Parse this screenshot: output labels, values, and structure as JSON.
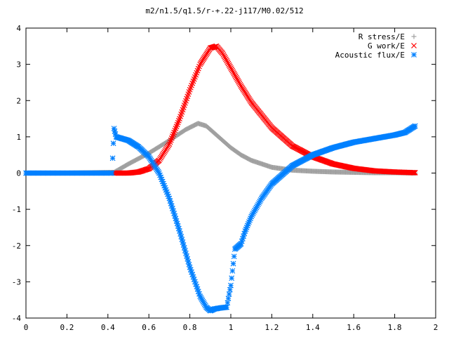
{
  "chart_data": {
    "type": "scatter",
    "title": "m2/n1.5/q1.5/r-+.22-j117/M0.02/512",
    "xlabel": "",
    "ylabel": "",
    "xlim": [
      0,
      2
    ],
    "ylim": [
      -4,
      4
    ],
    "xticks": [
      "0",
      "0.2",
      "0.4",
      "0.6",
      "0.8",
      "1",
      "1.2",
      "1.4",
      "1.6",
      "1.8",
      "2"
    ],
    "yticks": [
      "4",
      "3",
      "2",
      "1",
      "0",
      "-1",
      "-2",
      "-3",
      "-4"
    ],
    "grid": false,
    "legend_position": "top-right",
    "series": [
      {
        "name": "R stress/E",
        "marker": "plus",
        "color": "#a0a0a0",
        "x": [
          0.0,
          0.2,
          0.43,
          0.5,
          0.6,
          0.7,
          0.78,
          0.84,
          0.88,
          0.95,
          1.0,
          1.05,
          1.1,
          1.2,
          1.3,
          1.4,
          1.5,
          1.6,
          1.7,
          1.8,
          1.9
        ],
        "y": [
          0,
          0,
          0.02,
          0.25,
          0.55,
          0.9,
          1.2,
          1.37,
          1.3,
          0.95,
          0.7,
          0.5,
          0.35,
          0.16,
          0.08,
          0.05,
          0.03,
          0.02,
          0.01,
          0.01,
          0.0
        ]
      },
      {
        "name": "G work/E",
        "marker": "cross",
        "color": "#ff0000",
        "x": [
          0.43,
          0.5,
          0.55,
          0.6,
          0.65,
          0.7,
          0.75,
          0.8,
          0.85,
          0.9,
          0.93,
          0.96,
          1.0,
          1.05,
          1.1,
          1.2,
          1.3,
          1.4,
          1.5,
          1.6,
          1.7,
          1.8,
          1.9
        ],
        "y": [
          0.0,
          0.0,
          0.03,
          0.12,
          0.35,
          0.8,
          1.5,
          2.3,
          3.0,
          3.45,
          3.5,
          3.3,
          2.9,
          2.4,
          1.95,
          1.25,
          0.75,
          0.45,
          0.25,
          0.13,
          0.06,
          0.03,
          0.01
        ]
      },
      {
        "name": "Acoustic flux/E",
        "marker": "star",
        "color": "#0080ff",
        "x": [
          0.0,
          0.2,
          0.42,
          0.43,
          0.44,
          0.5,
          0.55,
          0.6,
          0.65,
          0.7,
          0.75,
          0.8,
          0.85,
          0.88,
          0.9,
          0.92,
          0.95,
          0.98,
          1.0,
          1.02,
          1.05,
          1.07,
          1.1,
          1.15,
          1.2,
          1.3,
          1.4,
          1.5,
          1.6,
          1.7,
          1.8,
          1.85,
          1.9
        ],
        "y": [
          0.0,
          0.0,
          0.0,
          1.23,
          1.0,
          0.9,
          0.72,
          0.45,
          0.0,
          -0.7,
          -1.6,
          -2.6,
          -3.4,
          -3.7,
          -3.8,
          -3.75,
          -3.72,
          -3.7,
          -3.1,
          -2.1,
          -1.95,
          -1.6,
          -1.2,
          -0.7,
          -0.3,
          0.2,
          0.5,
          0.7,
          0.85,
          0.95,
          1.05,
          1.12,
          1.3
        ]
      }
    ]
  }
}
